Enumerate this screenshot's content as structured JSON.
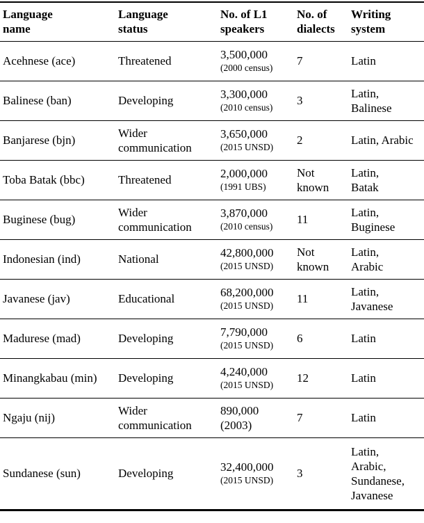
{
  "colors": {
    "text": "#000000",
    "background": "#ffffff",
    "rule": "#000000"
  },
  "table": {
    "columns": [
      {
        "id": "language-name",
        "lines": [
          "Language",
          "name"
        ]
      },
      {
        "id": "language-status",
        "lines": [
          "Language",
          "status"
        ]
      },
      {
        "id": "l1-speakers",
        "lines": [
          "No. of L1",
          "speakers"
        ]
      },
      {
        "id": "dialects",
        "lines": [
          "No. of",
          "dialects"
        ]
      },
      {
        "id": "writing-system",
        "lines": [
          "Writing",
          "system"
        ]
      }
    ],
    "rows": [
      {
        "name": "Acehnese (ace)",
        "status_lines": [
          "Threatened"
        ],
        "speakers_value": "3,500,000",
        "speakers_source": "(2000 census)",
        "source_small": true,
        "dialects_lines": [
          "7"
        ],
        "writing_lines": [
          "Latin"
        ]
      },
      {
        "name": "Balinese (ban)",
        "status_lines": [
          "Developing"
        ],
        "speakers_value": "3,300,000",
        "speakers_source": "(2010 census)",
        "source_small": true,
        "dialects_lines": [
          "3"
        ],
        "writing_lines": [
          "Latin,",
          "Balinese"
        ]
      },
      {
        "name": "Banjarese (bjn)",
        "status_lines": [
          "Wider",
          "communication"
        ],
        "speakers_value": "3,650,000",
        "speakers_source": "(2015 UNSD)",
        "source_small": true,
        "dialects_lines": [
          "2"
        ],
        "writing_lines": [
          "Latin, Arabic"
        ]
      },
      {
        "name": "Toba Batak (bbc)",
        "status_lines": [
          "Threatened"
        ],
        "speakers_value": "2,000,000",
        "speakers_source": "(1991 UBS)",
        "source_small": true,
        "dialects_lines": [
          "Not",
          "known"
        ],
        "writing_lines": [
          "Latin,",
          "Batak"
        ]
      },
      {
        "name": "Buginese (bug)",
        "status_lines": [
          "Wider",
          "communication"
        ],
        "speakers_value": "3,870,000",
        "speakers_source": "(2010 census)",
        "source_small": true,
        "dialects_lines": [
          "11"
        ],
        "writing_lines": [
          "Latin,",
          "Buginese"
        ]
      },
      {
        "name": "Indonesian (ind)",
        "status_lines": [
          "National"
        ],
        "speakers_value": "42,800,000",
        "speakers_source": "(2015 UNSD)",
        "source_small": true,
        "dialects_lines": [
          "Not",
          "known"
        ],
        "writing_lines": [
          "Latin,",
          "Arabic"
        ]
      },
      {
        "name": "Javanese (jav)",
        "status_lines": [
          "Educational"
        ],
        "speakers_value": "68,200,000",
        "speakers_source": "(2015 UNSD)",
        "source_small": true,
        "dialects_lines": [
          "11"
        ],
        "writing_lines": [
          "Latin,",
          "Javanese"
        ]
      },
      {
        "name": "Madurese (mad)",
        "status_lines": [
          "Developing"
        ],
        "speakers_value": "7,790,000",
        "speakers_source": "(2015 UNSD)",
        "source_small": true,
        "dialects_lines": [
          "6"
        ],
        "writing_lines": [
          "Latin"
        ]
      },
      {
        "name": "Minangkabau (min)",
        "status_lines": [
          "Developing"
        ],
        "speakers_value": "4,240,000",
        "speakers_source": "(2015 UNSD)",
        "source_small": true,
        "dialects_lines": [
          "12"
        ],
        "writing_lines": [
          "Latin"
        ]
      },
      {
        "name": "Ngaju (nij)",
        "status_lines": [
          "Wider",
          "communication"
        ],
        "speakers_value": "890,000",
        "speakers_source": "(2003)",
        "source_small": false,
        "dialects_lines": [
          "7"
        ],
        "writing_lines": [
          "Latin"
        ]
      },
      {
        "name": "Sundanese (sun)",
        "status_lines": [
          "Developing"
        ],
        "speakers_value": "32,400,000",
        "speakers_source": "(2015 UNSD)",
        "source_small": true,
        "dialects_lines": [
          "3"
        ],
        "writing_lines": [
          "Latin,",
          "Arabic,",
          "Sundanese,",
          "Javanese"
        ]
      }
    ]
  }
}
